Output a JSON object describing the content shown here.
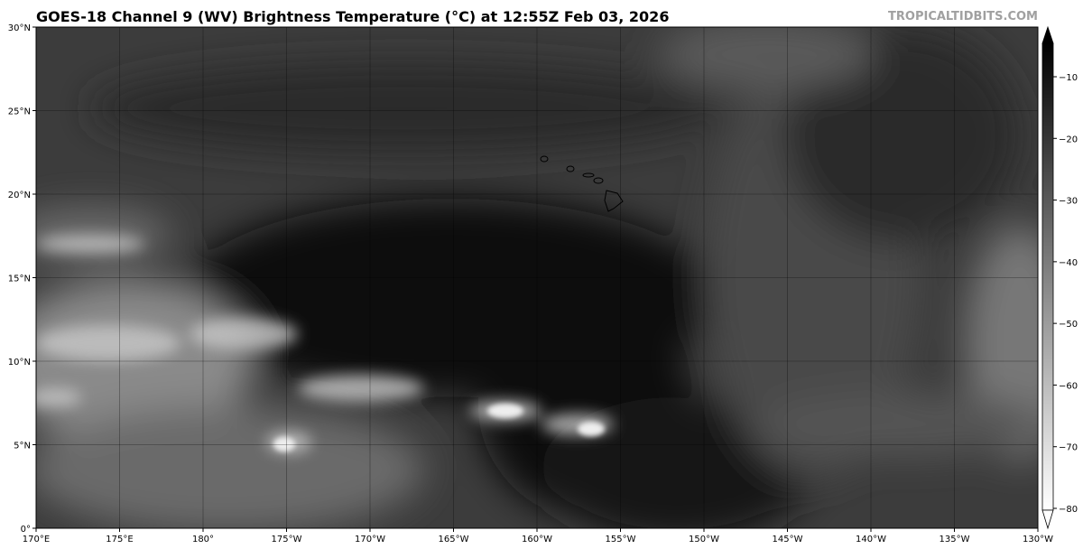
{
  "title": "GOES-18 Channel 9 (WV) Brightness Temperature (°C) at 12:55Z Feb 03, 2026",
  "brand": "TROPICALTIDBITS.COM",
  "map": {
    "projection": "equirectangular",
    "lon_range": [
      "170°E",
      "130°W"
    ],
    "lat_range": [
      "0°",
      "30°N"
    ],
    "lon_ticks": [
      "170°E",
      "175°E",
      "180°",
      "175°W",
      "170°W",
      "165°W",
      "160°W",
      "155°W",
      "150°W",
      "145°W",
      "140°W",
      "135°W",
      "130°W"
    ],
    "lat_ticks": [
      "0°",
      "5°N",
      "10°N",
      "15°N",
      "20°N",
      "25°N",
      "30°N"
    ],
    "grid": true,
    "features": [
      "Hawaiian Islands coastline"
    ]
  },
  "colorbar": {
    "orientation": "vertical",
    "colormap": "grayscale (black = warm, white = cold)",
    "ticks": [
      "−10",
      "−20",
      "−30",
      "−40",
      "−50",
      "−60",
      "−70",
      "−80"
    ],
    "extend": "both",
    "colors": {
      "warm": "#000000",
      "cold": "#ffffff"
    }
  }
}
